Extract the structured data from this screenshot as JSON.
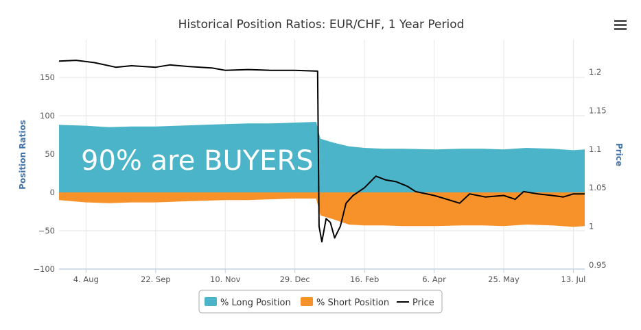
{
  "colors": {
    "long": "#4bb4c8",
    "short": "#f7922b",
    "price": "#000000",
    "axis_title": "#4572a7",
    "grid": "#e6e6e6"
  },
  "menu": {
    "icon": "hamburger-menu-icon"
  },
  "overlay_text": "90% are BUYERS",
  "chart_data": {
    "type": "area",
    "title": "Historical Position Ratios: EUR/CHF, 1 Year Period",
    "y_left": {
      "label": "Position Ratios",
      "range": [
        -100,
        150
      ],
      "ticks": [
        150,
        100,
        50,
        0,
        -50,
        -100
      ]
    },
    "y_right": {
      "label": "Price",
      "range": [
        0.95,
        1.2
      ],
      "ticks": [
        1.2,
        1.15,
        1.1,
        1.05,
        1,
        0.95
      ]
    },
    "x_ticks": [
      "4. Aug",
      "22. Sep",
      "10. Nov",
      "29. Dec",
      "16. Feb",
      "6. Apr",
      "25. May",
      "13. Jul"
    ],
    "x_range": [
      "2014-07-16",
      "2015-07-21"
    ],
    "legend": {
      "placement": "bottom-center",
      "items": [
        "% Long Position",
        "% Short Position",
        "Price"
      ]
    },
    "series": [
      {
        "name": "% Long Position",
        "axis": "left",
        "points": [
          [
            "2014-07-16",
            88
          ],
          [
            "2014-08-04",
            87
          ],
          [
            "2014-08-20",
            85
          ],
          [
            "2014-09-05",
            86
          ],
          [
            "2014-09-22",
            86
          ],
          [
            "2014-10-08",
            87
          ],
          [
            "2014-10-25",
            88
          ],
          [
            "2014-11-10",
            89
          ],
          [
            "2014-11-26",
            90
          ],
          [
            "2014-12-12",
            90
          ],
          [
            "2014-12-29",
            91
          ],
          [
            "2015-01-13",
            92
          ],
          [
            "2015-01-16",
            70
          ],
          [
            "2015-01-25",
            65
          ],
          [
            "2015-02-05",
            60
          ],
          [
            "2015-02-16",
            58
          ],
          [
            "2015-03-01",
            57
          ],
          [
            "2015-03-15",
            57
          ],
          [
            "2015-04-06",
            56
          ],
          [
            "2015-04-25",
            57
          ],
          [
            "2015-05-10",
            57
          ],
          [
            "2015-05-25",
            56
          ],
          [
            "2015-06-10",
            58
          ],
          [
            "2015-06-28",
            57
          ],
          [
            "2015-07-13",
            55
          ],
          [
            "2015-07-21",
            56
          ]
        ]
      },
      {
        "name": "% Short Position",
        "axis": "left",
        "points": [
          [
            "2014-07-16",
            -10
          ],
          [
            "2014-08-04",
            -13
          ],
          [
            "2014-08-20",
            -14
          ],
          [
            "2014-09-05",
            -13
          ],
          [
            "2014-09-22",
            -13
          ],
          [
            "2014-10-08",
            -12
          ],
          [
            "2014-10-25",
            -11
          ],
          [
            "2014-11-10",
            -10
          ],
          [
            "2014-11-26",
            -10
          ],
          [
            "2014-12-12",
            -9
          ],
          [
            "2014-12-29",
            -8
          ],
          [
            "2015-01-13",
            -8
          ],
          [
            "2015-01-16",
            -30
          ],
          [
            "2015-01-25",
            -35
          ],
          [
            "2015-02-05",
            -42
          ],
          [
            "2015-02-16",
            -43
          ],
          [
            "2015-03-01",
            -43
          ],
          [
            "2015-03-15",
            -44
          ],
          [
            "2015-04-06",
            -44
          ],
          [
            "2015-04-25",
            -43
          ],
          [
            "2015-05-10",
            -43
          ],
          [
            "2015-05-25",
            -44
          ],
          [
            "2015-06-10",
            -42
          ],
          [
            "2015-06-28",
            -43
          ],
          [
            "2015-07-13",
            -45
          ],
          [
            "2015-07-21",
            -44
          ]
        ]
      },
      {
        "name": "Price",
        "axis": "right",
        "points": [
          [
            "2014-07-16",
            1.214
          ],
          [
            "2014-07-28",
            1.215
          ],
          [
            "2014-08-10",
            1.212
          ],
          [
            "2014-08-25",
            1.206
          ],
          [
            "2014-09-05",
            1.208
          ],
          [
            "2014-09-22",
            1.206
          ],
          [
            "2014-10-02",
            1.209
          ],
          [
            "2014-10-15",
            1.207
          ],
          [
            "2014-11-01",
            1.205
          ],
          [
            "2014-11-10",
            1.202
          ],
          [
            "2014-11-26",
            1.203
          ],
          [
            "2014-12-12",
            1.202
          ],
          [
            "2014-12-29",
            1.202
          ],
          [
            "2015-01-14",
            1.201
          ],
          [
            "2015-01-15",
            1.0
          ],
          [
            "2015-01-17",
            0.98
          ],
          [
            "2015-01-20",
            1.01
          ],
          [
            "2015-01-23",
            1.005
          ],
          [
            "2015-01-26",
            0.985
          ],
          [
            "2015-01-30",
            1.0
          ],
          [
            "2015-02-03",
            1.03
          ],
          [
            "2015-02-08",
            1.04
          ],
          [
            "2015-02-16",
            1.05
          ],
          [
            "2015-02-24",
            1.065
          ],
          [
            "2015-03-03",
            1.06
          ],
          [
            "2015-03-10",
            1.058
          ],
          [
            "2015-03-18",
            1.052
          ],
          [
            "2015-03-24",
            1.045
          ],
          [
            "2015-04-06",
            1.04
          ],
          [
            "2015-04-15",
            1.035
          ],
          [
            "2015-04-24",
            1.03
          ],
          [
            "2015-05-01",
            1.042
          ],
          [
            "2015-05-12",
            1.038
          ],
          [
            "2015-05-25",
            1.04
          ],
          [
            "2015-06-02",
            1.035
          ],
          [
            "2015-06-08",
            1.045
          ],
          [
            "2015-06-18",
            1.042
          ],
          [
            "2015-06-28",
            1.04
          ],
          [
            "2015-07-06",
            1.038
          ],
          [
            "2015-07-13",
            1.042
          ],
          [
            "2015-07-21",
            1.042
          ]
        ]
      }
    ]
  }
}
